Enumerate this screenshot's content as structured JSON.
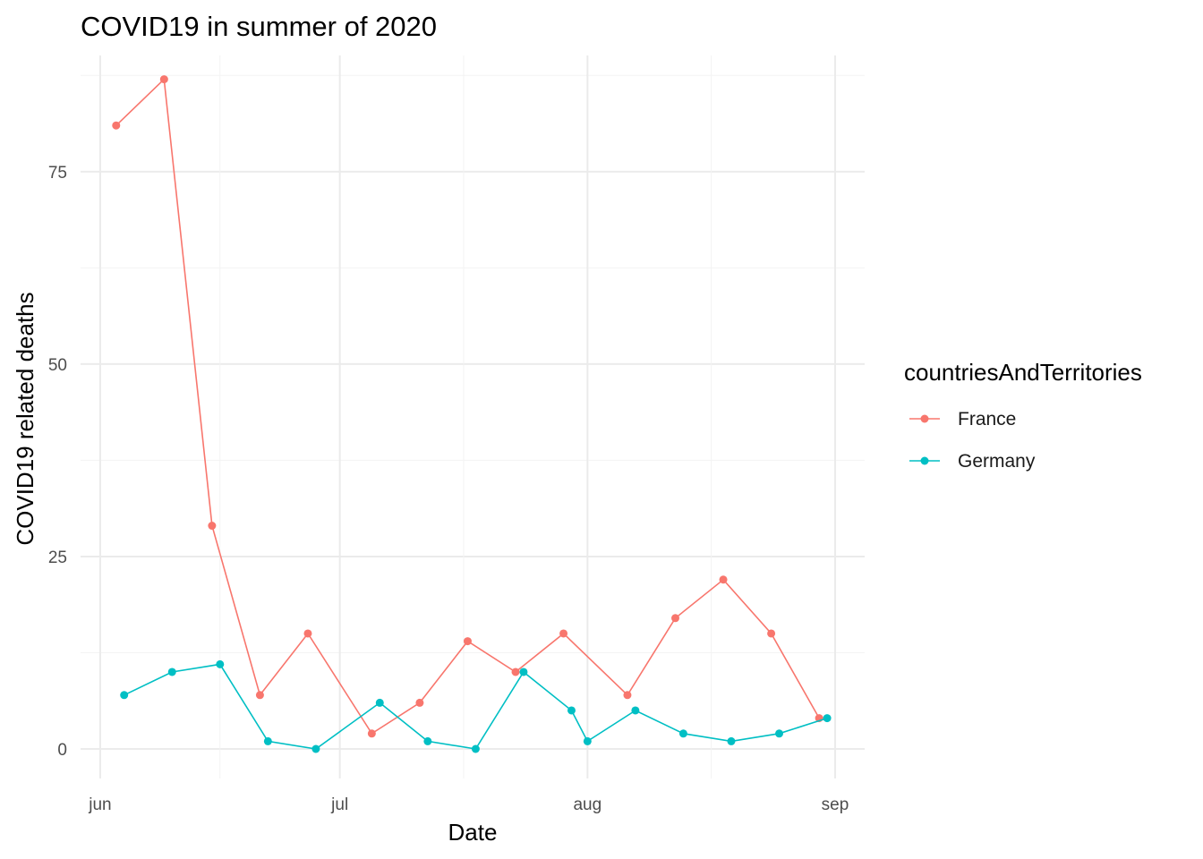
{
  "chart_data": {
    "type": "line",
    "title": "COVID19 in summer of 2020",
    "xlabel": "Date",
    "ylabel": "COVID19 related deaths",
    "x_axis": {
      "kind": "date",
      "range": [
        "2020-05-31",
        "2020-09-01"
      ],
      "ticks": [
        {
          "date": "2020-06-01",
          "label": "jun"
        },
        {
          "date": "2020-07-01",
          "label": "jul"
        },
        {
          "date": "2020-08-01",
          "label": "aug"
        },
        {
          "date": "2020-09-01",
          "label": "sep"
        }
      ]
    },
    "y_axis": {
      "range": [
        0,
        88
      ],
      "ticks": [
        0,
        25,
        50,
        75
      ]
    },
    "grid": true,
    "legend": {
      "title": "countriesAndTerritories",
      "placement": "right"
    },
    "series": [
      {
        "name": "France",
        "color": "#f8766d",
        "points": [
          {
            "x": "2020-06-03",
            "y": 81
          },
          {
            "x": "2020-06-09",
            "y": 87
          },
          {
            "x": "2020-06-15",
            "y": 29
          },
          {
            "x": "2020-06-21",
            "y": 7
          },
          {
            "x": "2020-06-27",
            "y": 15
          },
          {
            "x": "2020-07-05",
            "y": 2
          },
          {
            "x": "2020-07-11",
            "y": 6
          },
          {
            "x": "2020-07-17",
            "y": 14
          },
          {
            "x": "2020-07-23",
            "y": 10
          },
          {
            "x": "2020-07-29",
            "y": 15
          },
          {
            "x": "2020-08-06",
            "y": 7
          },
          {
            "x": "2020-08-12",
            "y": 17
          },
          {
            "x": "2020-08-18",
            "y": 22
          },
          {
            "x": "2020-08-24",
            "y": 15
          },
          {
            "x": "2020-08-30",
            "y": 4
          }
        ]
      },
      {
        "name": "Germany",
        "color": "#00bfc4",
        "points": [
          {
            "x": "2020-06-04",
            "y": 7
          },
          {
            "x": "2020-06-10",
            "y": 10
          },
          {
            "x": "2020-06-16",
            "y": 11
          },
          {
            "x": "2020-06-22",
            "y": 1
          },
          {
            "x": "2020-06-28",
            "y": 0
          },
          {
            "x": "2020-07-06",
            "y": 6
          },
          {
            "x": "2020-07-12",
            "y": 1
          },
          {
            "x": "2020-07-18",
            "y": 0
          },
          {
            "x": "2020-07-24",
            "y": 10
          },
          {
            "x": "2020-07-30",
            "y": 5
          },
          {
            "x": "2020-08-01",
            "y": 1
          },
          {
            "x": "2020-08-07",
            "y": 5
          },
          {
            "x": "2020-08-13",
            "y": 2
          },
          {
            "x": "2020-08-19",
            "y": 1
          },
          {
            "x": "2020-08-25",
            "y": 2
          },
          {
            "x": "2020-08-31",
            "y": 4
          }
        ]
      }
    ]
  }
}
